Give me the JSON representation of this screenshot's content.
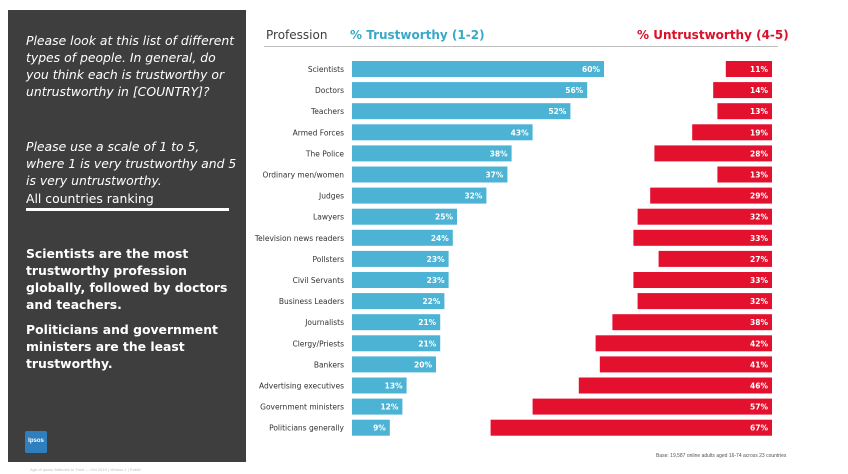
{
  "left_panel": {
    "question": "Please look at this list of different types of people. In general, do you think each is trustworthy or untrustworthy in [COUNTRY]?",
    "scale_note": "Please use a scale of 1 to 5, where 1 is very trustworthy and 5 is very untrustworthy.",
    "ranking_label": "All countries ranking",
    "summary_1": "Scientists are the most trustworthy profession globally, followed by doctors and teachers.",
    "summary_2": "Politicians and government ministers are the least trustworthy.",
    "logo_text": "Ipsos"
  },
  "headers": {
    "profession": "Profession",
    "trustworthy": "% Trustworthy (1-2)",
    "untrustworthy": "% Untrustworthy (4-5)"
  },
  "base_note": "Base: 19,587 online adults aged 16-74 across 23 countries",
  "footer_note": "Age of Ipsos/ Attitudes to Trust — Oct 2019 | Version 1 | Public",
  "colors": {
    "trustworthy": "#4cb3d4",
    "untrustworthy": "#e3102e",
    "panel": "#3e3e3e"
  },
  "chart_data": {
    "type": "bar",
    "orientation": "horizontal",
    "title": "",
    "categories": [
      "Scientists",
      "Doctors",
      "Teachers",
      "Armed Forces",
      "The Police",
      "Ordinary men/women",
      "Judges",
      "Lawyers",
      "Television news readers",
      "Pollsters",
      "Civil Servants",
      "Business Leaders",
      "Journalists",
      "Clergy/Priests",
      "Bankers",
      "Advertising executives",
      "Government ministers",
      "Politicians generally"
    ],
    "series": [
      {
        "name": "% Trustworthy (1-2)",
        "values": [
          60,
          56,
          52,
          43,
          38,
          37,
          32,
          25,
          24,
          23,
          23,
          22,
          21,
          21,
          20,
          13,
          12,
          9
        ]
      },
      {
        "name": "% Untrustworthy (4-5)",
        "values": [
          11,
          14,
          13,
          19,
          28,
          13,
          29,
          32,
          33,
          27,
          33,
          32,
          38,
          42,
          41,
          46,
          57,
          67
        ]
      }
    ],
    "value_suffix": "%",
    "grid": false,
    "legend": "top"
  }
}
